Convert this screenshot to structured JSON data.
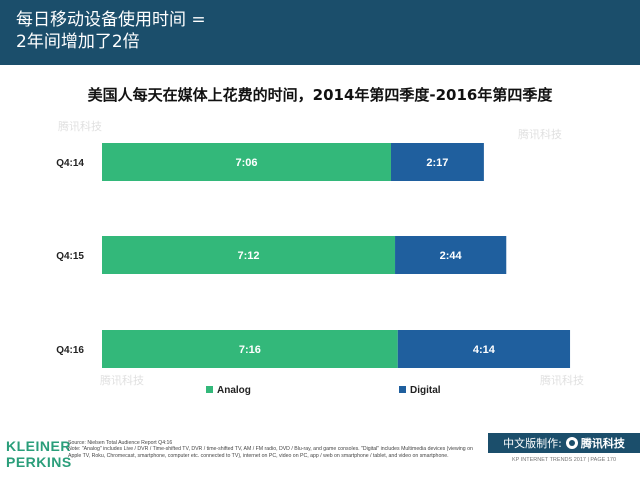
{
  "header": {
    "title": "每日移动设备使用时间 =\n2年间增加了2倍"
  },
  "chart_data": {
    "type": "bar",
    "orientation": "horizontal",
    "stacked": true,
    "title": "美国人每天在媒体上花费的时间，2014年第四季度-2016年第四季度",
    "categories": [
      "Q4:14",
      "Q4:15",
      "Q4:16"
    ],
    "series": [
      {
        "name": "Analog",
        "color": "#33b87a",
        "values": [
          7.1,
          7.2,
          7.267
        ],
        "labels": [
          "7:06",
          "7:12",
          "7:16"
        ]
      },
      {
        "name": "Digital",
        "color": "#1f5f9e",
        "values": [
          2.283,
          2.733,
          4.233
        ],
        "labels": [
          "2:17",
          "2:44",
          "4:14"
        ]
      }
    ],
    "xlabel": "",
    "ylabel": "",
    "grid": false,
    "legend": "bottom"
  },
  "footer": {
    "logo_line1": "KLEINER",
    "logo_line2": "PERKINS",
    "source": "Source: Nielsen Total Audience Report Q4:16",
    "note": "Note: \"Analog\" includes Live / DVR / Time-shifted TV, DVR / time-shifted TV, AM / FM radio, DVD / Blu-ray, and game consoles. \"Digital\" includes Multimedia devices (viewing on Apple TV, Roku, Chromecast, smartphone, computer etc. connected to TV), internet on PC, video on PC, app / web on smartphone / tablet, and video on smartphone.",
    "cn_label": "中文版制作:",
    "cn_brand": "腾讯科技",
    "page_info": "KP INTERNET TRENDS 2017  |  PAGE 170"
  },
  "watermark": "腾讯科技"
}
